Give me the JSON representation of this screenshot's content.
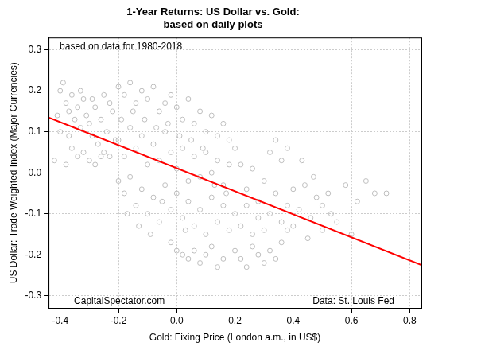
{
  "chart_data": {
    "type": "scatter",
    "title": "1-Year Returns: US Dollar vs. Gold:",
    "subtitle": "based on daily plots",
    "x_label": "Gold: Fixing Price (London a.m., in US$)",
    "y_label": "US Dollar: Trade Weighted Index (Major Currencies)",
    "annotations": [
      "based on data for 1980-2018",
      "CapitalSpectator.com",
      "Data: St. Louis Fed"
    ],
    "xlim": [
      -0.44,
      0.84
    ],
    "ylim": [
      -0.33,
      0.33
    ],
    "xticks": [
      -0.4,
      -0.2,
      {
        "value": 0,
        "label": "0.0"
      },
      0.2,
      0.4,
      0.6,
      0.8
    ],
    "yticks": [
      -0.3,
      -0.2,
      -0.1,
      {
        "value": 0,
        "label": "0.0"
      },
      0.1,
      0.2,
      0.3
    ],
    "grid": true,
    "series": [
      {
        "type": "scatter",
        "color": "#bebebe",
        "marker": "open-circle",
        "x": [
          -0.4,
          -0.39,
          -0.38,
          -0.37,
          -0.36,
          -0.35,
          -0.34,
          -0.33,
          -0.32,
          -0.31,
          -0.3,
          -0.29,
          -0.28,
          -0.27,
          -0.26,
          -0.25,
          -0.24,
          -0.23,
          -0.22,
          -0.21,
          -0.42,
          -0.41,
          -0.4,
          -0.38,
          -0.36,
          -0.34,
          -0.32,
          -0.3,
          -0.28,
          -0.26,
          -0.2,
          -0.18,
          -0.16,
          -0.14,
          -0.12,
          -0.1,
          -0.08,
          -0.06,
          -0.04,
          -0.02,
          0,
          0.02,
          0.04,
          0.06,
          0.08,
          0.1,
          0.12,
          0.14,
          0.16,
          0.18,
          -0.2,
          -0.18,
          -0.16,
          -0.14,
          -0.12,
          -0.1,
          -0.08,
          -0.06,
          -0.04,
          -0.02,
          0,
          0.02,
          0.04,
          0.06,
          0.08,
          0.1,
          0.12,
          0.14,
          0.16,
          0.18,
          -0.2,
          -0.18,
          -0.16,
          -0.14,
          -0.12,
          -0.1,
          -0.08,
          -0.06,
          -0.04,
          -0.02,
          0,
          0.02,
          0.04,
          0.06,
          0.08,
          0.1,
          0.12,
          0.14,
          0.16,
          0.18,
          -0.02,
          0,
          0.02,
          0.04,
          0.06,
          0.08,
          0.1,
          0.12,
          0.14,
          0.16,
          0.2,
          0.22,
          0.24,
          0.26,
          0.28,
          0.3,
          0.32,
          0.34,
          0.36,
          0.38,
          0.2,
          0.22,
          0.24,
          0.26,
          0.28,
          0.3,
          0.32,
          0.34,
          0.36,
          0.38,
          0.2,
          0.22,
          0.24,
          0.26,
          0.28,
          0.3,
          0.32,
          0.34,
          0.36,
          0.38,
          0.4,
          0.42,
          0.44,
          0.46,
          0.48,
          0.5,
          0.52,
          0.55,
          0.58,
          0.6,
          0.62,
          0.65,
          0.68,
          0.72,
          0.4,
          0.43,
          0.45,
          0.47,
          0.5,
          0.53,
          -0.37,
          -0.33,
          -0.29,
          -0.25,
          -0.23,
          -0.19,
          -0.15,
          -0.11,
          -0.07,
          -0.03,
          0.01,
          0.05,
          0.09,
          0.13,
          0.17,
          -0.17,
          -0.13,
          -0.09,
          -0.05,
          0.03
        ],
        "values": [
          0.2,
          0.22,
          0.17,
          0.15,
          0.19,
          0.13,
          0.16,
          0.11,
          0.18,
          0.14,
          0.12,
          0.09,
          0.16,
          0.07,
          0.13,
          0.05,
          0.1,
          0.04,
          0.15,
          0.08,
          0.03,
          0.14,
          0.1,
          0.02,
          0.06,
          0.04,
          0.05,
          0.03,
          0.02,
          0.04,
          0.21,
          0.19,
          0.22,
          0.17,
          0.2,
          0.18,
          0.21,
          0.15,
          0.17,
          0.19,
          0.16,
          0.13,
          0.18,
          0.12,
          0.15,
          0.1,
          0.14,
          0.09,
          0.12,
          0.08,
          0.08,
          0.04,
          0.11,
          0.06,
          0.09,
          0.02,
          0.07,
          0.03,
          0.1,
          0.05,
          0.01,
          0.06,
          -0.02,
          0.04,
          -0.01,
          0.05,
          0,
          0.03,
          -0.03,
          0.02,
          -0.02,
          -0.05,
          -0.01,
          -0.08,
          -0.04,
          -0.1,
          -0.06,
          -0.12,
          -0.03,
          -0.09,
          -0.05,
          -0.11,
          -0.07,
          -0.13,
          -0.09,
          -0.15,
          -0.06,
          -0.12,
          -0.08,
          -0.14,
          -0.17,
          -0.19,
          -0.2,
          -0.21,
          -0.19,
          -0.22,
          -0.2,
          -0.18,
          -0.23,
          -0.21,
          -0.19,
          -0.21,
          -0.23,
          -0.18,
          -0.2,
          -0.22,
          -0.19,
          -0.21,
          -0.17,
          -0.14,
          0.06,
          0.02,
          -0.04,
          0.01,
          -0.07,
          -0.02,
          -0.1,
          -0.05,
          -0.12,
          -0.08,
          -0.1,
          -0.13,
          -0.08,
          -0.15,
          -0.11,
          -0.14,
          0.05,
          0.08,
          0.03,
          0.06,
          -0.04,
          -0.09,
          -0.03,
          -0.11,
          -0.06,
          -0.14,
          -0.05,
          -0.12,
          -0.03,
          -0.15,
          -0.07,
          -0.02,
          -0.05,
          -0.05,
          -0.13,
          0.03,
          -0.16,
          -0.01,
          -0.08,
          -0.1,
          0.09,
          0.2,
          0.18,
          0.19,
          0.17,
          0.13,
          0.15,
          0.13,
          0.11,
          0.12,
          0.09,
          0.08,
          0.06,
          -0.03,
          -0.05,
          -0.1,
          -0.13,
          -0.15,
          -0.07,
          -0.14
        ]
      },
      {
        "type": "line",
        "color": "#ff0000",
        "line_style": "solid",
        "x": [
          -0.44,
          0.84
        ],
        "values": [
          0.135,
          -0.225
        ]
      }
    ]
  }
}
